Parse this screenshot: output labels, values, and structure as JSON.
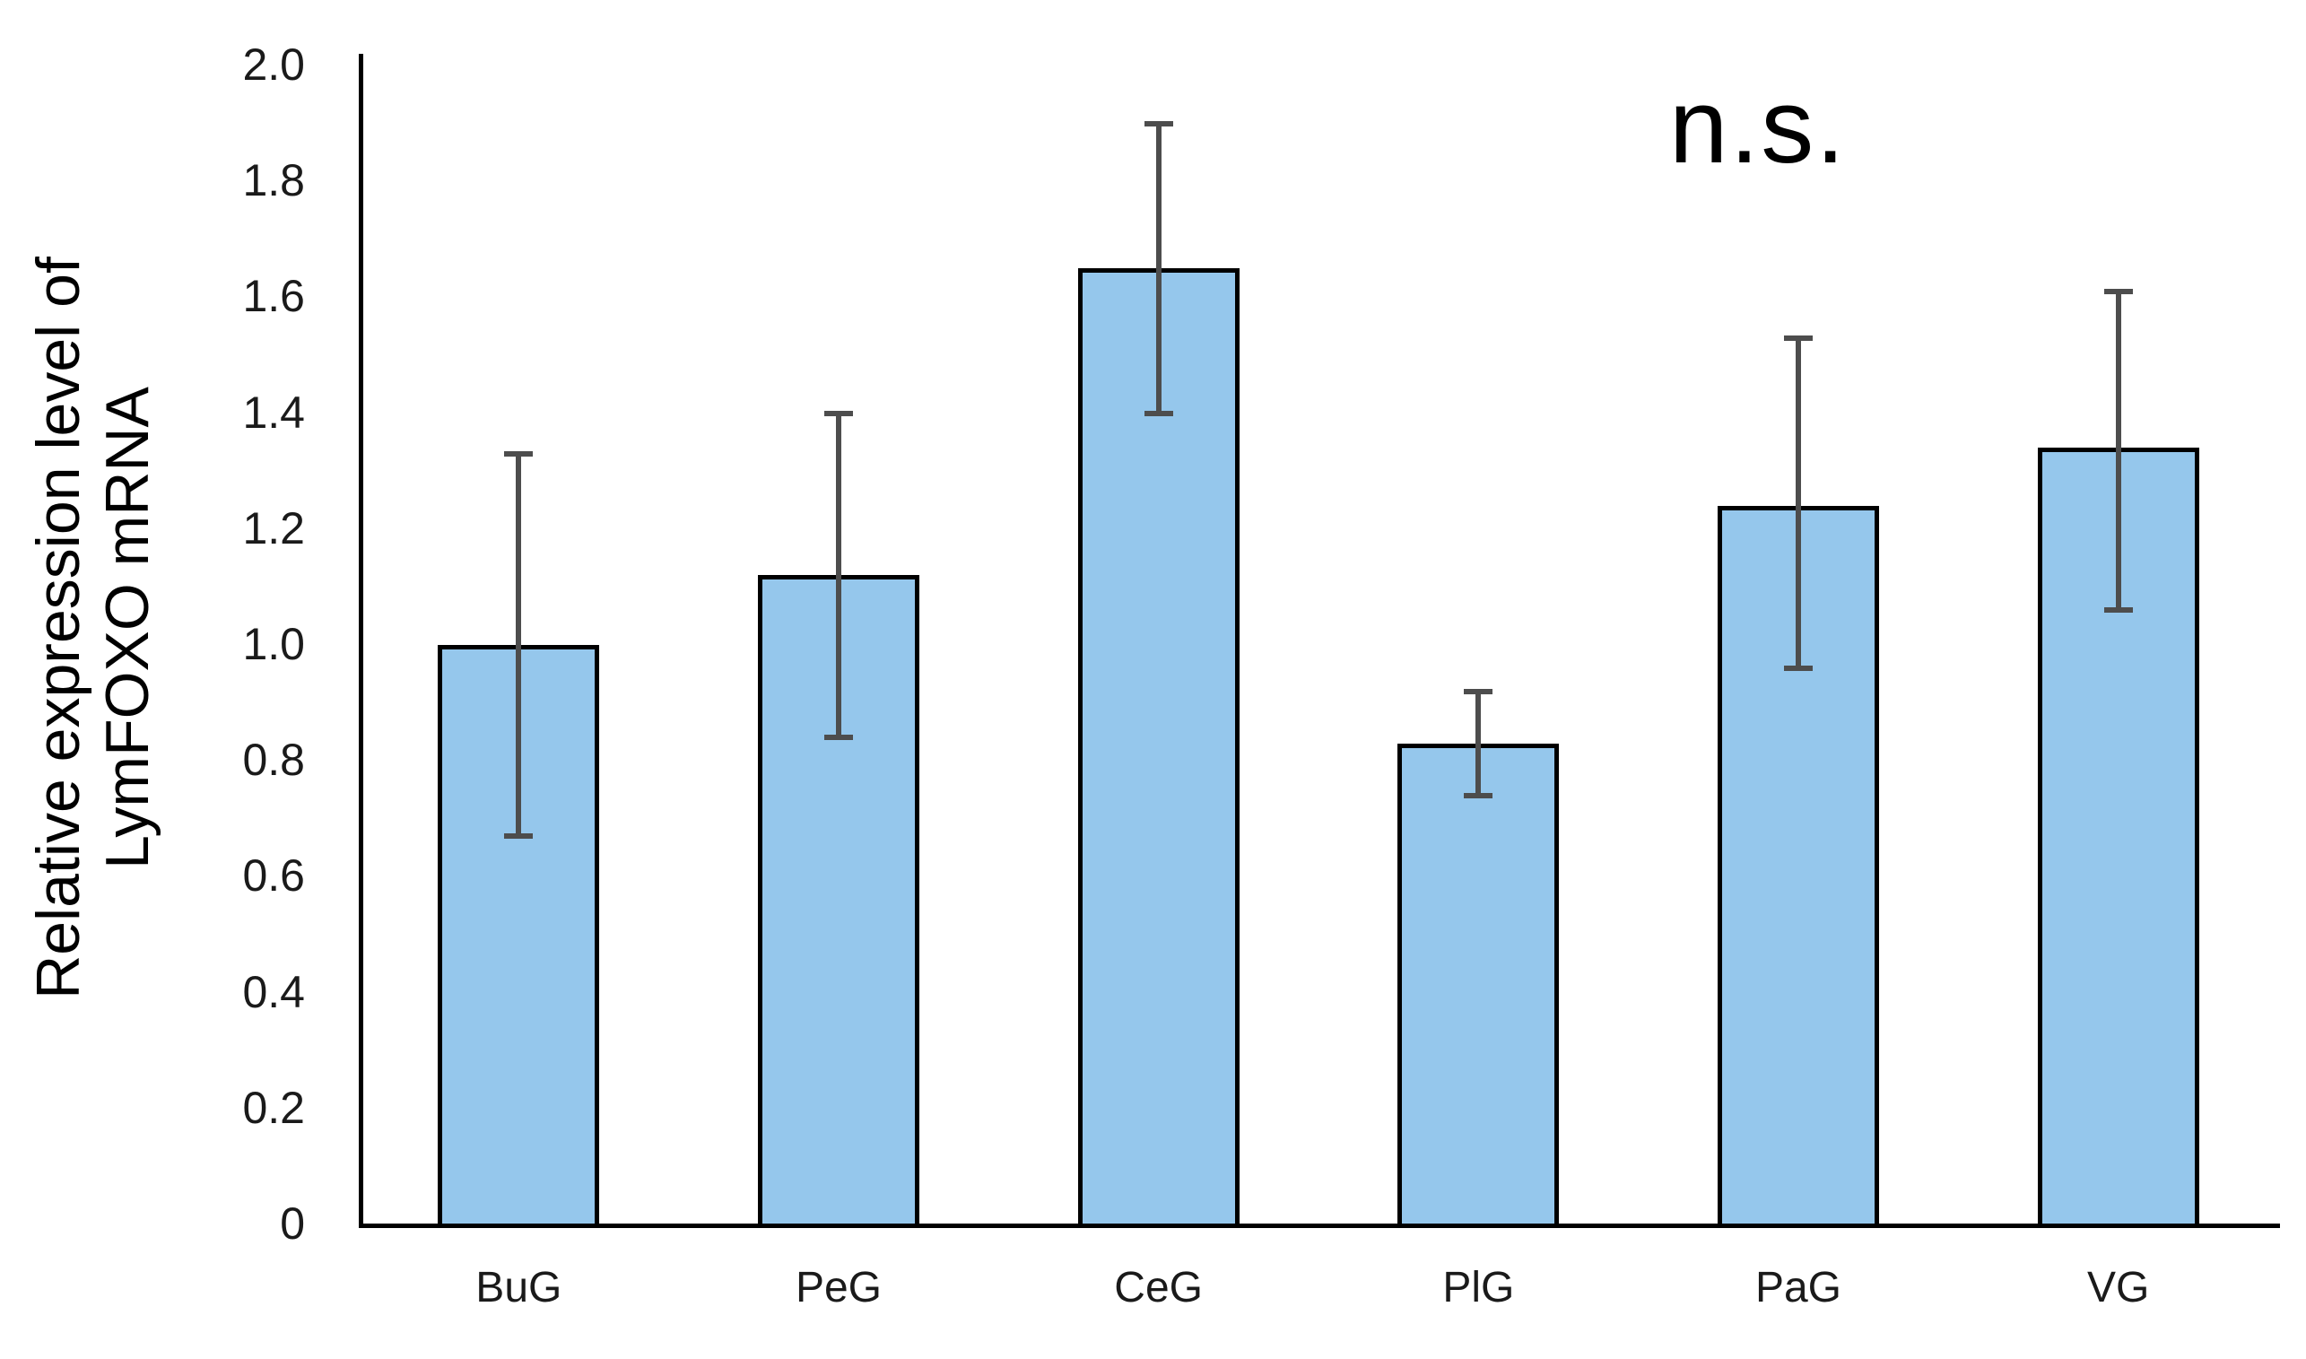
{
  "page": {
    "background_color": "#ffffff",
    "text_color": "#000000"
  },
  "chart_data": {
    "type": "bar",
    "title": "",
    "xlabel": "",
    "ylabel": "Relative expression level of LymFOXO mRNA",
    "ylabel_lines": [
      "Relative expression level of",
      "LymFOXO mRNA"
    ],
    "categories": [
      "BuG",
      "PeG",
      "CeG",
      "PlG",
      "PaG",
      "VG"
    ],
    "values": [
      1.0,
      1.12,
      1.65,
      0.83,
      1.24,
      1.34
    ],
    "error_bars": {
      "upper": [
        1.33,
        1.4,
        1.9,
        0.92,
        1.53,
        1.61
      ],
      "lower": [
        0.67,
        0.84,
        1.4,
        0.74,
        0.96,
        1.06
      ]
    },
    "ylim": [
      0,
      2.0
    ],
    "ytick_labels": [
      "2.0",
      "1.8",
      "1.6",
      "1.4",
      "1.2",
      "1.0",
      "0.8",
      "0.6",
      "0.4",
      "0.2",
      "0"
    ],
    "ytick_values": [
      2.0,
      1.8,
      1.6,
      1.4,
      1.2,
      1.0,
      0.8,
      0.6,
      0.4,
      0.2,
      0
    ],
    "grid": false,
    "legend": null,
    "annotation": "n.s.",
    "bar_color": "#95C7EC",
    "bar_border_color": "#000000",
    "error_bar_color": "#4d4d4d"
  }
}
